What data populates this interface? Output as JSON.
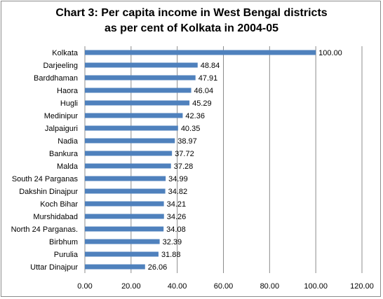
{
  "chart_data": {
    "type": "bar",
    "orientation": "horizontal",
    "title_line1": "Chart 3: Per capita income in West Bengal districts",
    "title_line2": "as per cent of Kolkata in 2004-05",
    "categories": [
      "Kolkata",
      "Darjeeling",
      "Barddhaman",
      "Haora",
      "Hugli",
      "Medinipur",
      "Jalpaiguri",
      "Nadia",
      "Bankura",
      "Malda",
      "South 24 Parganas",
      "Dakshin Dinajpur",
      "Koch Bihar",
      "Murshidabad",
      "North 24 Parganas.",
      "Birbhum",
      "Purulia",
      "Uttar Dinajpur"
    ],
    "values": [
      100.0,
      48.84,
      47.91,
      46.04,
      45.29,
      42.36,
      40.35,
      38.97,
      37.72,
      37.28,
      34.99,
      34.82,
      34.21,
      34.26,
      34.08,
      32.39,
      31.88,
      26.06
    ],
    "value_labels": [
      "100.00",
      "48.84",
      "47.91",
      "46.04",
      "45.29",
      "42.36",
      "40.35",
      "38.97",
      "37.72",
      "37.28",
      "34.99",
      "34.82",
      "34.21",
      "34.26",
      "34.08",
      "32.39",
      "31.88",
      "26.06"
    ],
    "x_ticks": [
      "0.00",
      "20.00",
      "40.00",
      "60.00",
      "80.00",
      "100.00",
      "120.00"
    ],
    "xlim": [
      0,
      120
    ],
    "grid": "vertical",
    "bar_color": "#4f81bd",
    "xlabel": "",
    "ylabel": ""
  }
}
